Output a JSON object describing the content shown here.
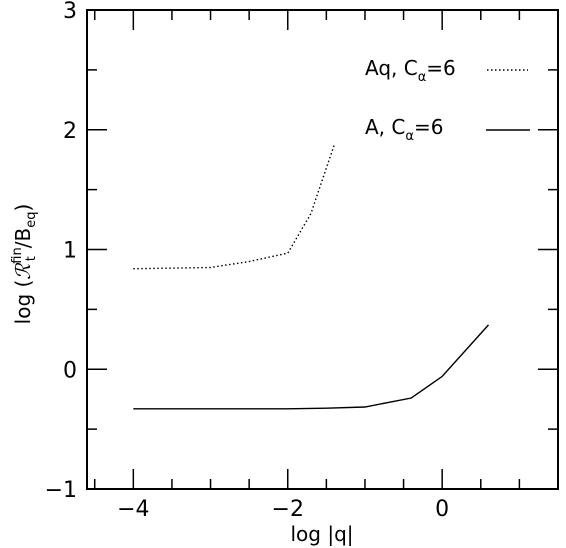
{
  "chart_data": {
    "type": "line",
    "title": "",
    "xlabel": "log |q|",
    "ylabel": {
      "prefix": "log (",
      "symbol": "ℛ",
      "sup": "fin",
      "sub": "t",
      "mid": "/B",
      "sub2": "eq",
      "suffix": ")"
    },
    "xlim": [
      -4.6,
      1.5
    ],
    "ylim": [
      -1,
      3
    ],
    "xticks": [
      -4,
      -2,
      0
    ],
    "xtick_labels": [
      "−4",
      "−2",
      "0"
    ],
    "yticks": [
      -1,
      0,
      1,
      2,
      3
    ],
    "ytick_labels": [
      "−1",
      "0",
      "1",
      "2",
      "3"
    ],
    "x_minor_step": 0.5,
    "y_minor_step": 0.5,
    "grid": false,
    "legend_position": "top-right",
    "series": [
      {
        "name": "Aq, Cα=6",
        "legend": {
          "main": "Aq,  C",
          "sub": "α",
          "tail": "=6"
        },
        "style": "dotted",
        "color": "#000000",
        "x": [
          -4.0,
          -3.0,
          -2.5,
          -2.0,
          -1.7,
          -1.4
        ],
        "y": [
          0.84,
          0.85,
          0.9,
          0.97,
          1.3,
          1.87
        ]
      },
      {
        "name": "A, Cα=6",
        "legend": {
          "main": "A,  C",
          "sub": "α",
          "tail": "=6"
        },
        "style": "solid",
        "color": "#000000",
        "x": [
          -4.0,
          -3.0,
          -2.0,
          -1.5,
          -1.0,
          -0.4,
          0.0,
          0.6
        ],
        "y": [
          -0.33,
          -0.33,
          -0.33,
          -0.325,
          -0.315,
          -0.24,
          -0.06,
          0.37
        ]
      }
    ]
  }
}
